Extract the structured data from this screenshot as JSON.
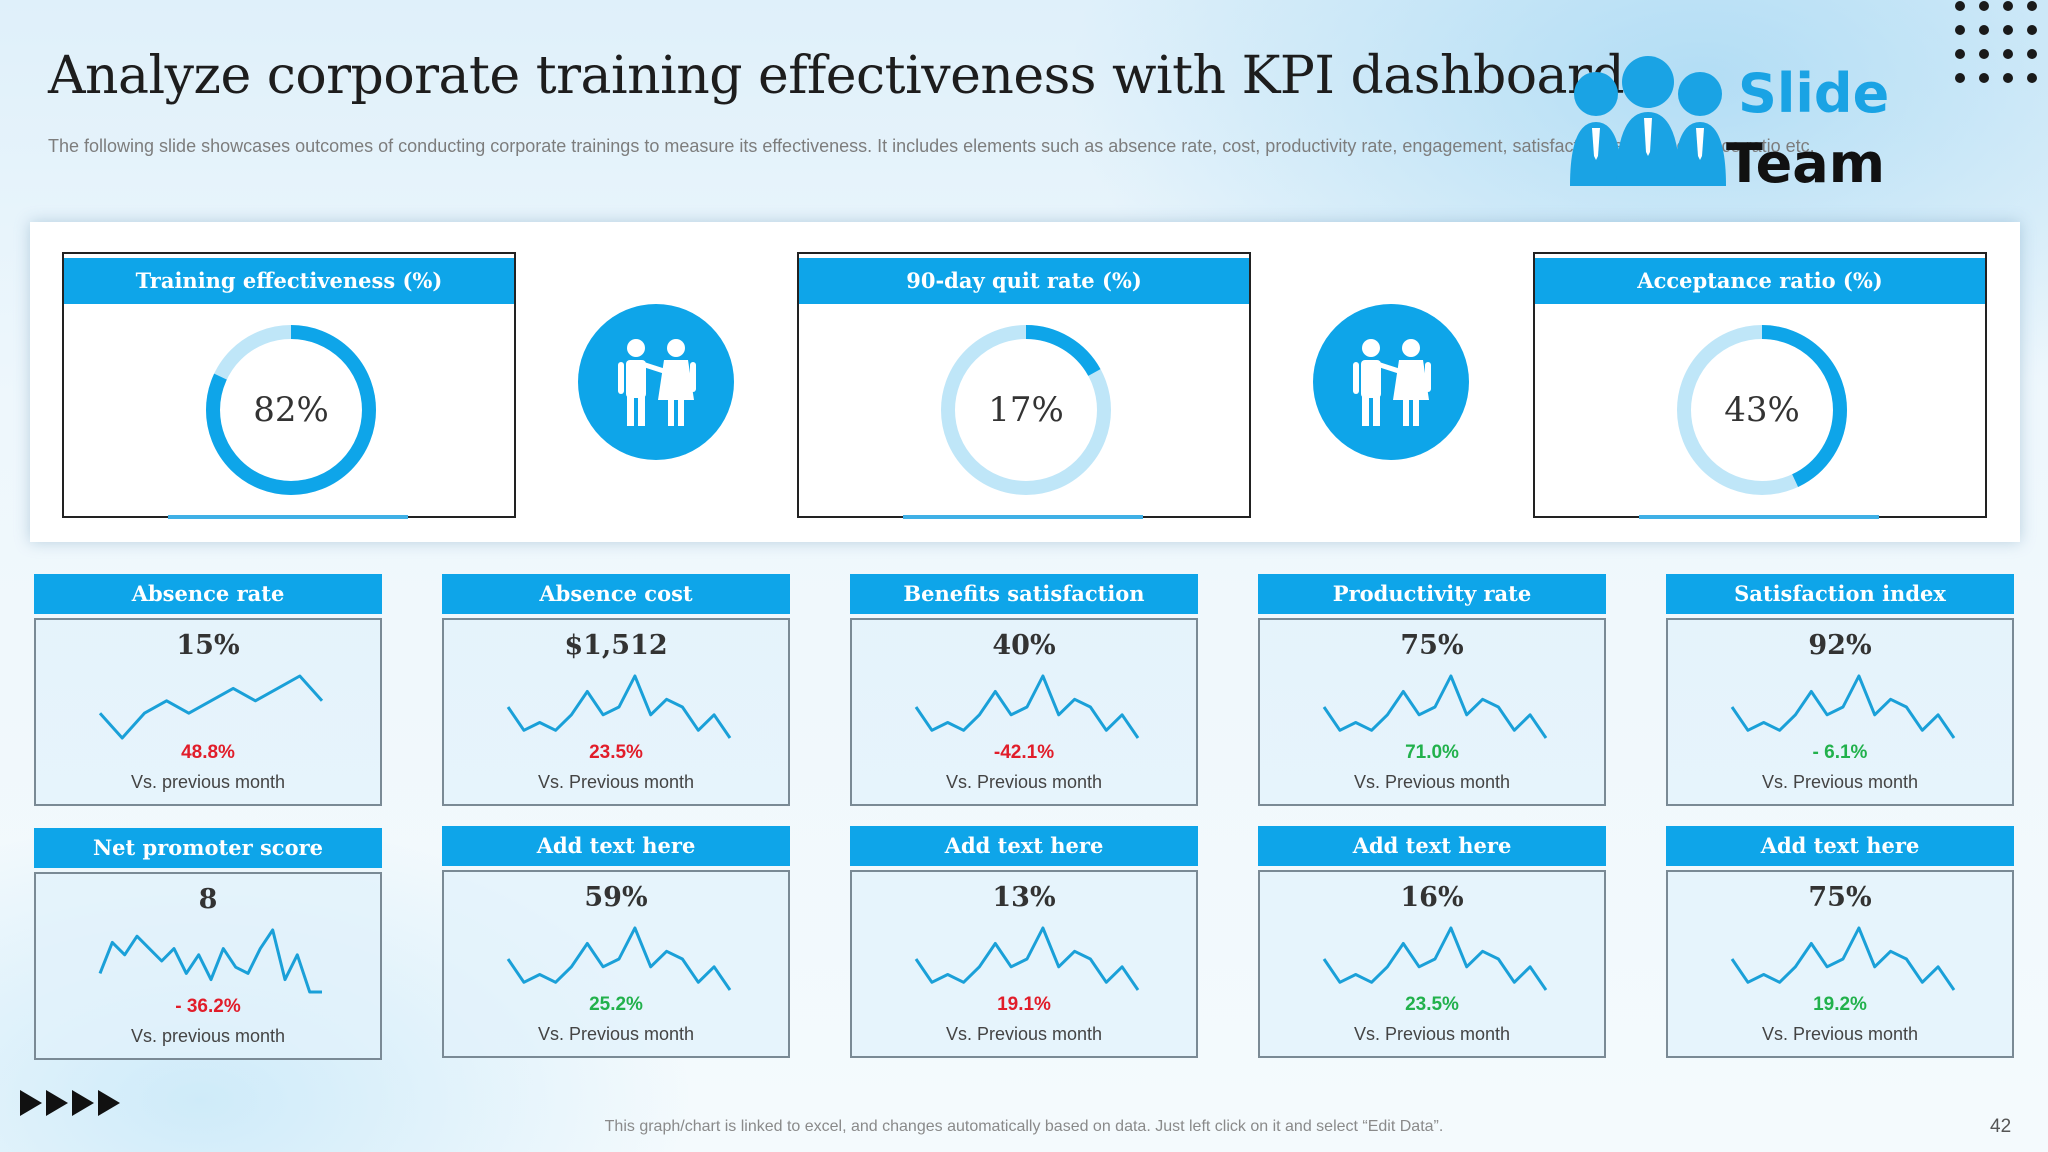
{
  "header": {
    "title": "Analyze corporate training effectiveness with KPI dashboard",
    "subtitle": "The following slide showcases outcomes of conducting corporate trainings to measure its effectiveness. It includes elements such as absence rate, cost, productivity rate, engagement, satisfaction rate, acceptance ratio etc."
  },
  "logo": {
    "line1": "Slide",
    "line2": "Team"
  },
  "colors": {
    "accent": "#0ea5e9",
    "donut_light": "#bfe6f8",
    "negative": "#e11d2a",
    "positive": "#22b14c"
  },
  "kpis": [
    {
      "label": "Training effectiveness (%)",
      "value": "82%",
      "percent": 82
    },
    {
      "label": "90-day quit rate (%)",
      "value": "17%",
      "percent": 17
    },
    {
      "label": "Acceptance ratio (%)",
      "value": "43%",
      "percent": 43
    }
  ],
  "metrics": [
    {
      "label": "Absence rate",
      "value": "15%",
      "change": "48.8%",
      "direction": "negative",
      "note": "Vs. previous month",
      "trend": [
        6,
        4,
        6,
        7,
        6,
        7,
        8,
        7,
        8,
        9,
        7
      ]
    },
    {
      "label": "Absence cost",
      "value": "$1,512",
      "change": "23.5%",
      "direction": "negative",
      "note": "Vs. Previous month",
      "trend": [
        6,
        3,
        4,
        3,
        5,
        8,
        5,
        6,
        10,
        5,
        7,
        6,
        3,
        5,
        2
      ]
    },
    {
      "label": "Benefits satisfaction",
      "value": "40%",
      "change": "-42.1%",
      "direction": "negative",
      "note": "Vs. Previous month",
      "trend": [
        6,
        3,
        4,
        3,
        5,
        8,
        5,
        6,
        10,
        5,
        7,
        6,
        3,
        5,
        2
      ]
    },
    {
      "label": "Productivity rate",
      "value": "75%",
      "change": "71.0%",
      "direction": "positive",
      "note": "Vs. Previous month",
      "trend": [
        6,
        3,
        4,
        3,
        5,
        8,
        5,
        6,
        10,
        5,
        7,
        6,
        3,
        5,
        2
      ]
    },
    {
      "label": "Satisfaction index",
      "value": "92%",
      "change": "- 6.1%",
      "direction": "positive",
      "note": "Vs. Previous month",
      "trend": [
        6,
        3,
        4,
        3,
        5,
        8,
        5,
        6,
        10,
        5,
        7,
        6,
        3,
        5,
        2
      ]
    },
    {
      "label": "Net promoter score",
      "value": "8",
      "change": "- 36.2%",
      "direction": "negative",
      "note": "Vs. previous month",
      "trend": [
        3,
        8,
        6,
        9,
        7,
        5,
        7,
        3,
        6,
        2,
        7,
        4,
        3,
        7,
        10,
        2,
        6,
        0,
        0
      ]
    },
    {
      "label": "Add text here",
      "value": "59%",
      "change": "25.2%",
      "direction": "positive",
      "note": "Vs. Previous month",
      "trend": [
        6,
        3,
        4,
        3,
        5,
        8,
        5,
        6,
        10,
        5,
        7,
        6,
        3,
        5,
        2
      ]
    },
    {
      "label": "Add text here",
      "value": "13%",
      "change": "19.1%",
      "direction": "negative",
      "note": "Vs. Previous month",
      "trend": [
        6,
        3,
        4,
        3,
        5,
        8,
        5,
        6,
        10,
        5,
        7,
        6,
        3,
        5,
        2
      ]
    },
    {
      "label": "Add text here",
      "value": "16%",
      "change": "23.5%",
      "direction": "positive",
      "note": "Vs. Previous month",
      "trend": [
        6,
        3,
        4,
        3,
        5,
        8,
        5,
        6,
        10,
        5,
        7,
        6,
        3,
        5,
        2
      ]
    },
    {
      "label": "Add text here",
      "value": "75%",
      "change": "19.2%",
      "direction": "positive",
      "note": "Vs. Previous month",
      "trend": [
        6,
        3,
        4,
        3,
        5,
        8,
        5,
        6,
        10,
        5,
        7,
        6,
        3,
        5,
        2
      ]
    }
  ],
  "footer": {
    "note": "This graph/chart is linked to excel, and changes automatically based on data. Just left click on it and select “Edit Data”.",
    "page_number": "42"
  }
}
